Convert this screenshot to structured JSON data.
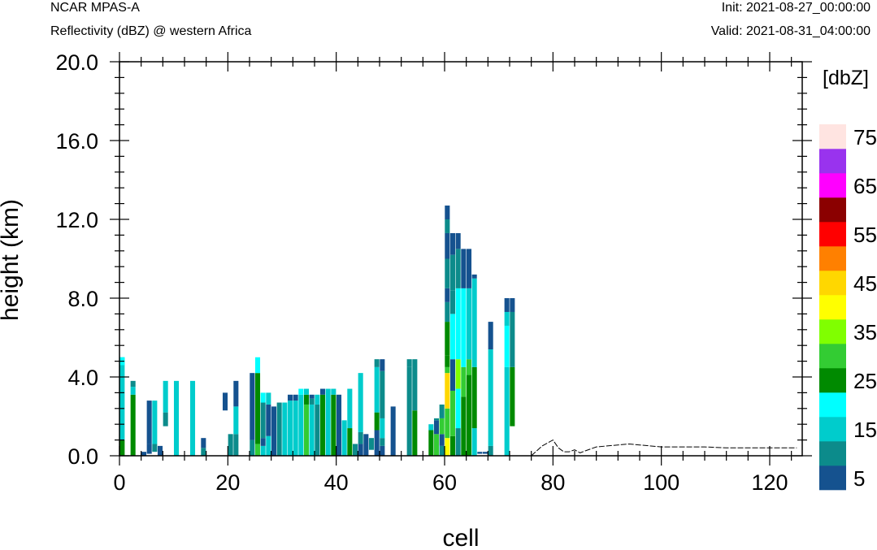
{
  "header": {
    "left_title": "NCAR MPAS-A",
    "left_subtitle": "Reflectivity (dBZ) @ western Africa",
    "right_init": "Init: 2021-08-27_00:00:00",
    "right_valid": "Valid: 2021-08-31_04:00:00"
  },
  "chart_data": {
    "type": "heatmap",
    "xlabel": "cell",
    "ylabel": "height (km)",
    "xlim": [
      0,
      126
    ],
    "ylim": [
      0,
      20
    ],
    "xticks": [
      0,
      20,
      40,
      60,
      80,
      100,
      120
    ],
    "xtick_labels": [
      "0",
      "20",
      "40",
      "60",
      "80",
      "100",
      "120"
    ],
    "yticks": [
      0,
      4,
      8,
      12,
      16,
      20
    ],
    "ytick_labels": [
      "0.0",
      "4.0",
      "8.0",
      "12.0",
      "16.0",
      "20.0"
    ],
    "colorbar": {
      "unit_label": "[dbZ]",
      "levels": [
        5,
        10,
        15,
        20,
        25,
        30,
        35,
        40,
        45,
        50,
        55,
        60,
        65,
        70,
        75
      ],
      "labels": [
        "5",
        "15",
        "25",
        "35",
        "45",
        "55",
        "65",
        "75"
      ],
      "colors": [
        "#15528f",
        "#0c8b8b",
        "#00cccc",
        "#00ffff",
        "#008a00",
        "#33cc33",
        "#80ff00",
        "#ffff00",
        "#ffd700",
        "#ff8000",
        "#ff0000",
        "#8b0000",
        "#ff00ff",
        "#9933ee",
        "#ffe4e1"
      ]
    },
    "columns": [
      {
        "cell": 0,
        "bins": [
          [
            0,
            0.8,
            25
          ],
          [
            0.8,
            5.0,
            15
          ],
          [
            4.6,
            5.0,
            20
          ]
        ]
      },
      {
        "cell": 2,
        "bins": [
          [
            0,
            3.1,
            25
          ],
          [
            3.1,
            3.5,
            15
          ],
          [
            3.5,
            3.8,
            10
          ]
        ]
      },
      {
        "cell": 4,
        "bins": [
          [
            0,
            0.2,
            5
          ]
        ]
      },
      {
        "cell": 5,
        "bins": [
          [
            0.1,
            0.6,
            5
          ],
          [
            0.6,
            2.8,
            5
          ]
        ]
      },
      {
        "cell": 6,
        "bins": [
          [
            0.2,
            0.6,
            10
          ],
          [
            0.6,
            2.8,
            15
          ]
        ]
      },
      {
        "cell": 7,
        "bins": [
          [
            0,
            0.5,
            5
          ]
        ]
      },
      {
        "cell": 8,
        "bins": [
          [
            1.5,
            2.2,
            10
          ],
          [
            2.2,
            3.8,
            15
          ]
        ]
      },
      {
        "cell": 10,
        "bins": [
          [
            0,
            3.8,
            15
          ]
        ]
      },
      {
        "cell": 13,
        "bins": [
          [
            0,
            3.8,
            15
          ]
        ]
      },
      {
        "cell": 15,
        "bins": [
          [
            0,
            0.4,
            10
          ],
          [
            0.4,
            0.9,
            5
          ]
        ]
      },
      {
        "cell": 19,
        "bins": [
          [
            2.3,
            3.2,
            5
          ]
        ]
      },
      {
        "cell": 20,
        "bins": [
          [
            0,
            1.1,
            10
          ]
        ]
      },
      {
        "cell": 21,
        "bins": [
          [
            0,
            1.1,
            10
          ],
          [
            1.1,
            2.5,
            15
          ],
          [
            2.5,
            3.8,
            5
          ]
        ]
      },
      {
        "cell": 24,
        "bins": [
          [
            0,
            0.8,
            10
          ],
          [
            0.8,
            4.2,
            5
          ]
        ]
      },
      {
        "cell": 25,
        "bins": [
          [
            0,
            0.6,
            30
          ],
          [
            0.6,
            4.2,
            25
          ],
          [
            4.2,
            5.0,
            20
          ]
        ]
      },
      {
        "cell": 26,
        "bins": [
          [
            0,
            0.5,
            15
          ],
          [
            0.5,
            0.9,
            5
          ],
          [
            0.9,
            2.7,
            10
          ],
          [
            2.7,
            3.2,
            20
          ]
        ]
      },
      {
        "cell": 27,
        "bins": [
          [
            0,
            1.0,
            15
          ],
          [
            1.0,
            2.6,
            5
          ],
          [
            2.6,
            3.2,
            15
          ]
        ]
      },
      {
        "cell": 28,
        "bins": [
          [
            0,
            2.5,
            5
          ]
        ]
      },
      {
        "cell": 29,
        "bins": [
          [
            0,
            2.7,
            10
          ]
        ]
      },
      {
        "cell": 30,
        "bins": [
          [
            0,
            2.7,
            15
          ]
        ]
      },
      {
        "cell": 31,
        "bins": [
          [
            0,
            2.8,
            15
          ],
          [
            2.8,
            3.1,
            5
          ]
        ]
      },
      {
        "cell": 32,
        "bins": [
          [
            0,
            2.8,
            15
          ],
          [
            2.8,
            3.1,
            5
          ]
        ]
      },
      {
        "cell": 33,
        "bins": [
          [
            0,
            3.1,
            15
          ],
          [
            3.1,
            3.4,
            20
          ]
        ]
      },
      {
        "cell": 34,
        "bins": [
          [
            0,
            2.6,
            30
          ],
          [
            2.6,
            3.1,
            25
          ],
          [
            3.1,
            3.4,
            15
          ]
        ]
      },
      {
        "cell": 35,
        "bins": [
          [
            0,
            2.6,
            15
          ],
          [
            2.6,
            2.9,
            10
          ],
          [
            2.9,
            3.1,
            5
          ]
        ]
      },
      {
        "cell": 36,
        "bins": [
          [
            0,
            2.6,
            10
          ],
          [
            2.6,
            3.1,
            15
          ]
        ]
      },
      {
        "cell": 37,
        "bins": [
          [
            0,
            3.1,
            25
          ],
          [
            3.1,
            3.4,
            5
          ]
        ]
      },
      {
        "cell": 38,
        "bins": [
          [
            0,
            3.4,
            15
          ]
        ]
      },
      {
        "cell": 39,
        "bins": [
          [
            0,
            3.1,
            25
          ],
          [
            3.1,
            3.4,
            15
          ]
        ]
      },
      {
        "cell": 40,
        "bins": [
          [
            0,
            3.1,
            5
          ]
        ]
      },
      {
        "cell": 41,
        "bins": [
          [
            0,
            1.8,
            15
          ]
        ]
      },
      {
        "cell": 42,
        "bins": [
          [
            0,
            1.4,
            25
          ],
          [
            1.4,
            3.4,
            15
          ]
        ]
      },
      {
        "cell": 43,
        "bins": [
          [
            0,
            0.6,
            10
          ]
        ]
      },
      {
        "cell": 44,
        "bins": [
          [
            0,
            0.6,
            5
          ],
          [
            0.6,
            1.2,
            10
          ],
          [
            1.2,
            4.2,
            15
          ]
        ]
      },
      {
        "cell": 45,
        "bins": [
          [
            0,
            1.1,
            5
          ]
        ]
      },
      {
        "cell": 46,
        "bins": [
          [
            0.3,
            0.9,
            10
          ]
        ]
      },
      {
        "cell": 47,
        "bins": [
          [
            0,
            1.3,
            5
          ],
          [
            1.3,
            2.2,
            25
          ],
          [
            2.2,
            4.5,
            15
          ],
          [
            4.5,
            4.9,
            10
          ]
        ]
      },
      {
        "cell": 48,
        "bins": [
          [
            0,
            0.5,
            5
          ],
          [
            0.5,
            0.9,
            10
          ],
          [
            0.9,
            1.9,
            15
          ],
          [
            1.9,
            4.3,
            10
          ],
          [
            4.3,
            4.9,
            5
          ]
        ]
      },
      {
        "cell": 50,
        "bins": [
          [
            0,
            2.5,
            5
          ]
        ]
      },
      {
        "cell": 53,
        "bins": [
          [
            0,
            4.5,
            10
          ],
          [
            4.5,
            4.9,
            10
          ]
        ]
      },
      {
        "cell": 54,
        "bins": [
          [
            0,
            2.3,
            25
          ],
          [
            2.3,
            4.9,
            10
          ]
        ]
      },
      {
        "cell": 57,
        "bins": [
          [
            0,
            1.3,
            25
          ],
          [
            1.3,
            1.6,
            15
          ]
        ]
      },
      {
        "cell": 58,
        "bins": [
          [
            0,
            1.1,
            30
          ],
          [
            1.1,
            1.8,
            5
          ],
          [
            1.8,
            1.9,
            10
          ]
        ]
      },
      {
        "cell": 59,
        "bins": [
          [
            0,
            0.5,
            10
          ],
          [
            0.5,
            1.1,
            5
          ],
          [
            1.1,
            1.9,
            30
          ],
          [
            1.9,
            2.6,
            10
          ]
        ]
      },
      {
        "cell": 60,
        "bins": [
          [
            0,
            0.9,
            40
          ],
          [
            0.9,
            2.4,
            30
          ],
          [
            2.4,
            4.2,
            45
          ],
          [
            4.2,
            4.5,
            30
          ],
          [
            4.5,
            5.1,
            25
          ],
          [
            5.1,
            6.8,
            25
          ],
          [
            6.8,
            7.8,
            10
          ],
          [
            7.8,
            8.5,
            5
          ],
          [
            8.5,
            10.0,
            10
          ],
          [
            10.0,
            11.3,
            5
          ],
          [
            11.3,
            12.0,
            10
          ],
          [
            12.0,
            12.7,
            5
          ]
        ]
      },
      {
        "cell": 61,
        "bins": [
          [
            0,
            1.0,
            25
          ],
          [
            1.0,
            3.3,
            30
          ],
          [
            3.3,
            4.9,
            5
          ],
          [
            4.9,
            7.2,
            20
          ],
          [
            7.2,
            8.4,
            10
          ],
          [
            8.4,
            10.2,
            10
          ],
          [
            10.2,
            11.3,
            5
          ]
        ]
      },
      {
        "cell": 62,
        "bins": [
          [
            0,
            1.4,
            10
          ],
          [
            1.4,
            3.4,
            20
          ],
          [
            3.4,
            4.9,
            35
          ],
          [
            4.9,
            8.5,
            20
          ],
          [
            8.5,
            10.5,
            10
          ],
          [
            10.5,
            11.3,
            5
          ]
        ]
      },
      {
        "cell": 63,
        "bins": [
          [
            0,
            3.0,
            25
          ],
          [
            3.0,
            4.5,
            30
          ],
          [
            4.5,
            8.5,
            20
          ],
          [
            8.5,
            10.5,
            5
          ]
        ]
      },
      {
        "cell": 64,
        "bins": [
          [
            0,
            4.1,
            25
          ],
          [
            4.1,
            4.9,
            30
          ],
          [
            4.9,
            8.5,
            15
          ],
          [
            8.5,
            10.5,
            5
          ]
        ]
      },
      {
        "cell": 65,
        "bins": [
          [
            0,
            1.4,
            15
          ],
          [
            1.4,
            4.5,
            25
          ],
          [
            4.5,
            9.0,
            15
          ],
          [
            9.0,
            9.2,
            5
          ]
        ]
      },
      {
        "cell": 66,
        "bins": [
          [
            0.1,
            0.2,
            5
          ]
        ]
      },
      {
        "cell": 67,
        "bins": [
          [
            0.1,
            0.2,
            5
          ]
        ]
      },
      {
        "cell": 68,
        "bins": [
          [
            0,
            0.5,
            10
          ],
          [
            0.5,
            5.4,
            15
          ],
          [
            5.4,
            6.8,
            5
          ]
        ]
      },
      {
        "cell": 71,
        "bins": [
          [
            0,
            4.5,
            15
          ],
          [
            4.5,
            6.6,
            20
          ],
          [
            6.6,
            7.3,
            15
          ],
          [
            7.3,
            8.0,
            5
          ]
        ]
      },
      {
        "cell": 72,
        "bins": [
          [
            1.5,
            4.5,
            25
          ],
          [
            4.5,
            7.3,
            10
          ],
          [
            7.3,
            8.0,
            5
          ]
        ]
      }
    ],
    "terrain": {
      "x": [
        76,
        78,
        80,
        81,
        82,
        83,
        84,
        85,
        86,
        88,
        90,
        92,
        94,
        96,
        100,
        104,
        108,
        112,
        116,
        120,
        125
      ],
      "y": [
        0.0,
        0.5,
        0.8,
        0.4,
        0.2,
        0.2,
        0.3,
        0.15,
        0.25,
        0.45,
        0.5,
        0.55,
        0.6,
        0.55,
        0.45,
        0.45,
        0.45,
        0.4,
        0.4,
        0.4,
        0.4
      ]
    }
  }
}
